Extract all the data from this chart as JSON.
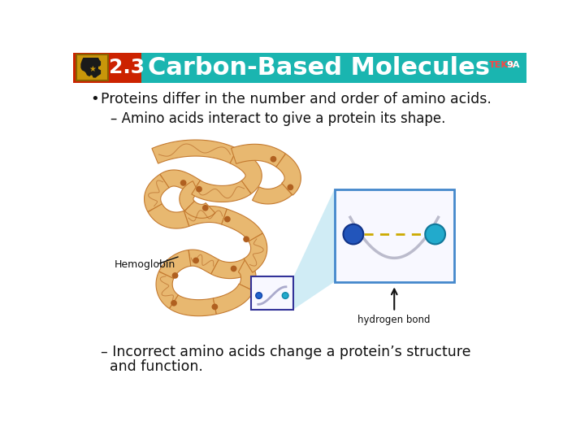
{
  "title": "Carbon-Based Molecules",
  "section_num": "2.3",
  "teks_label": "TEKS",
  "teks_num": "9A",
  "header_bg_color": "#1ab5b0",
  "header_red_bg": "#cc2200",
  "header_text_color": "#ffffff",
  "body_bg_color": "#f0f0f0",
  "bullet_text": "Proteins differ in the number and order of amino acids.",
  "sub_bullet1": "– Amino acids interact to give a protein its shape.",
  "sub_bullet2": "– Incorrect amino acids change a protein’s structure\n  and function.",
  "label_hemoglobin": "Hemoglobin",
  "label_hbond": "hydrogen bond",
  "text_color": "#111111",
  "protein_fill": "#e8b870",
  "protein_edge": "#c47a30",
  "protein_dark": "#b06020",
  "inset_border": "#4488cc",
  "sphere1_color": "#2255bb",
  "sphere2_color": "#22aacc",
  "dashed_color": "#ccaa00",
  "arrow_color": "#111111",
  "highlight_color": "#aaddee"
}
